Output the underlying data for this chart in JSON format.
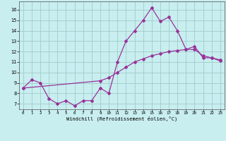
{
  "title": "",
  "xlabel": "Windchill (Refroidissement éolien,°C)",
  "bg_color": "#c8eef0",
  "grid_color": "#a0ccc8",
  "line_color": "#993399",
  "x_ticks": [
    0,
    1,
    2,
    3,
    4,
    5,
    6,
    7,
    8,
    9,
    10,
    11,
    12,
    13,
    14,
    15,
    16,
    17,
    18,
    19,
    20,
    21,
    22,
    23
  ],
  "y_ticks": [
    7,
    8,
    9,
    10,
    11,
    12,
    13,
    14,
    15,
    16
  ],
  "xlim": [
    -0.5,
    23.5
  ],
  "ylim": [
    6.5,
    16.8
  ],
  "line1_x": [
    0,
    1,
    2,
    3,
    4,
    5,
    6,
    7,
    8,
    9,
    10,
    11,
    12,
    13,
    14,
    15,
    16,
    17,
    18,
    19,
    20,
    21,
    22,
    23
  ],
  "line1_y": [
    8.5,
    9.3,
    9.0,
    7.5,
    7.0,
    7.3,
    6.8,
    7.3,
    7.3,
    8.5,
    8.0,
    11.0,
    13.0,
    14.0,
    15.0,
    16.2,
    14.9,
    15.3,
    14.0,
    12.2,
    12.5,
    11.4,
    11.4,
    11.2
  ],
  "line2_x": [
    0,
    9,
    10,
    11,
    12,
    13,
    14,
    15,
    16,
    17,
    18,
    19,
    20,
    21,
    22,
    23
  ],
  "line2_y": [
    8.5,
    9.2,
    9.5,
    10.0,
    10.5,
    11.0,
    11.3,
    11.6,
    11.8,
    12.0,
    12.1,
    12.2,
    12.2,
    11.6,
    11.4,
    11.1
  ]
}
